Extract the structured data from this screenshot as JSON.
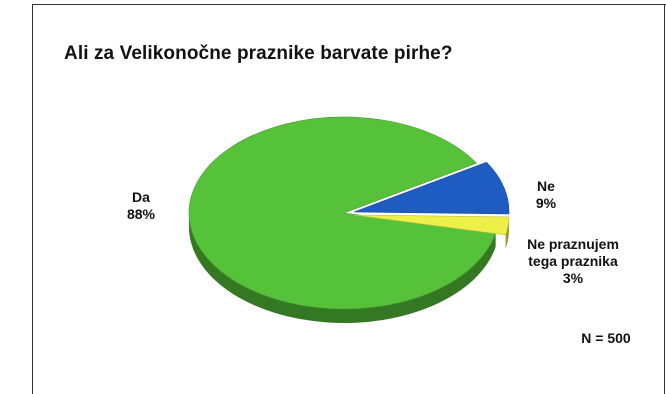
{
  "chart_data": {
    "type": "pie",
    "title": "Ali za Velikonočne praznike barvate pirhe?",
    "slices": [
      {
        "name": "Da",
        "value": 88,
        "label": "88%",
        "color": "#55c23a"
      },
      {
        "name": "Ne",
        "value": 9,
        "label": "9%",
        "color": "#1f5cc2"
      },
      {
        "name_lines": [
          "Ne praznujem",
          "tega praznika"
        ],
        "value": 3,
        "label": "3%",
        "color": "#eef04a"
      }
    ],
    "note": "N = 500"
  }
}
